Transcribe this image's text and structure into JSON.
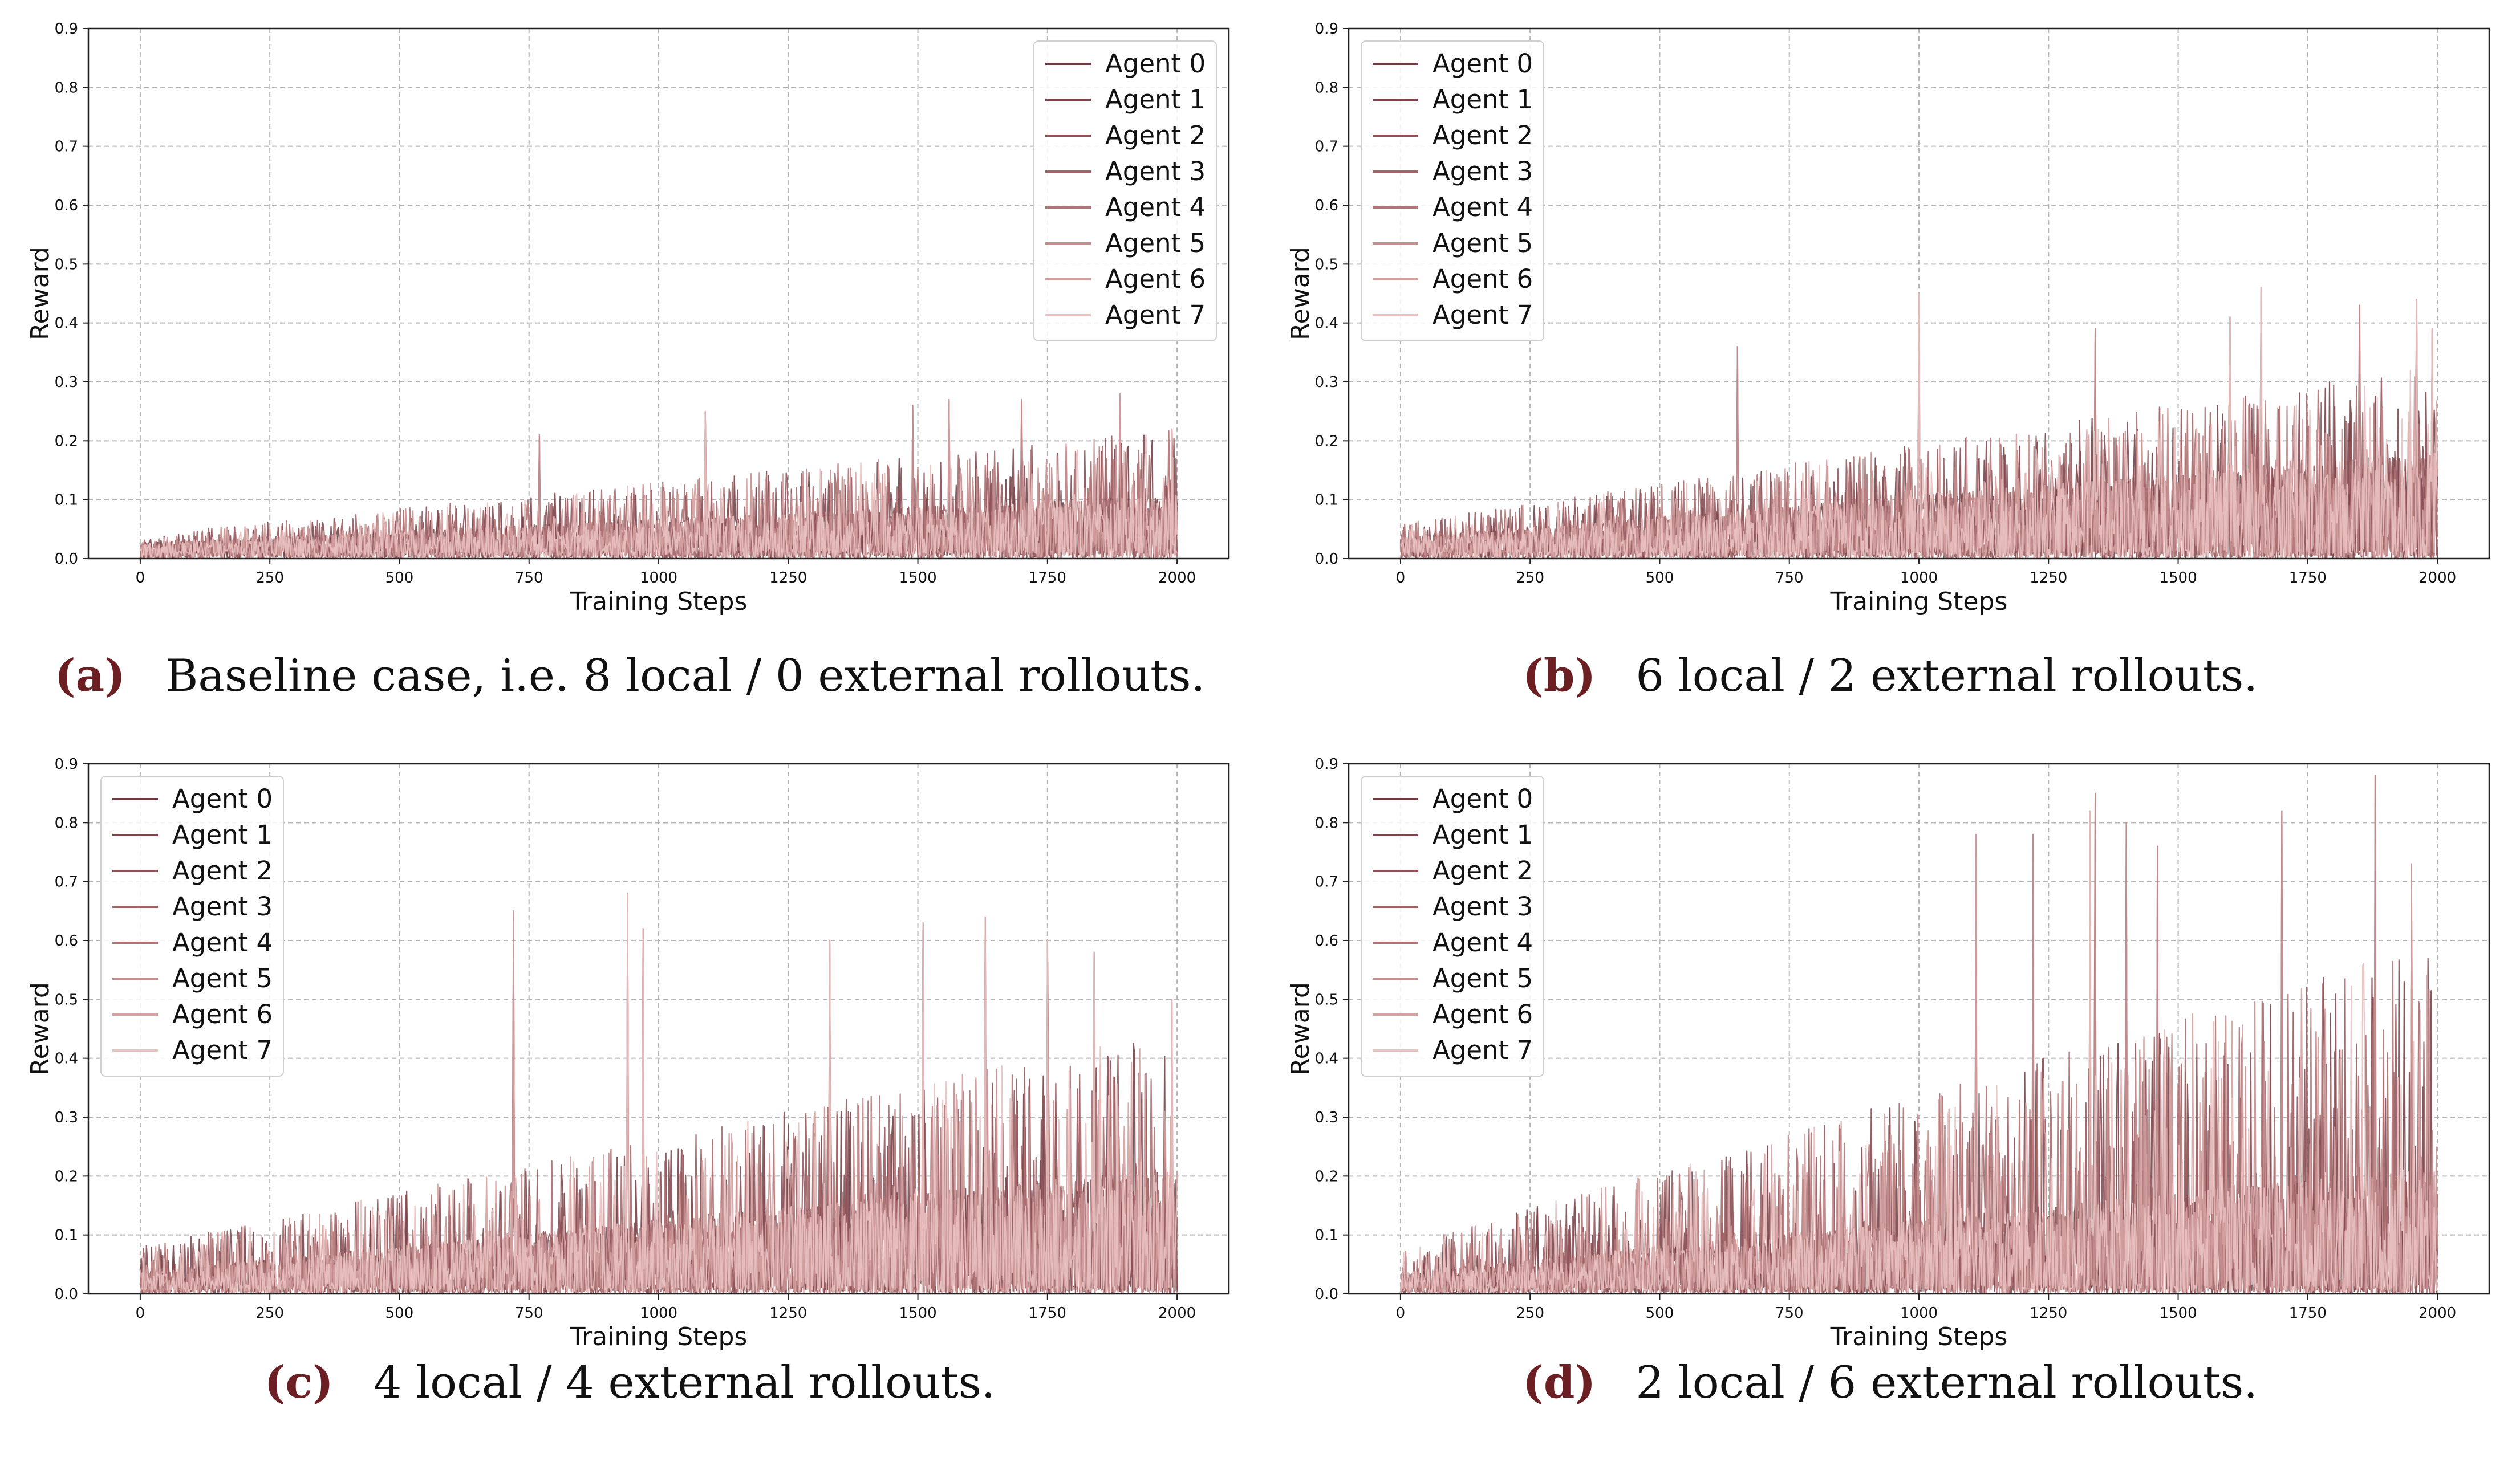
{
  "agent_colors": [
    "#6f3a40",
    "#7d434a",
    "#8f5157",
    "#a16466",
    "#b07476",
    "#c48f90",
    "#d4a1a1",
    "#e8c1c0"
  ],
  "chart_data": [
    {
      "type": "line",
      "caption_tag": "(a)",
      "caption_text": "Baseline case, i.e. 8 local / 0 external rollouts.",
      "xlabel": "Training Steps",
      "ylabel": "Reward",
      "xlim": [
        -100,
        2100
      ],
      "ylim": [
        0,
        0.9
      ],
      "xticks": [
        "0",
        "250",
        "500",
        "750",
        "1000",
        "1250",
        "1500",
        "1750",
        "2000"
      ],
      "yticks": [
        "0.0",
        "0.1",
        "0.2",
        "0.3",
        "0.4",
        "0.5",
        "0.6",
        "0.7",
        "0.8",
        "0.9"
      ],
      "grid": true,
      "legend_position": "top-right",
      "series_names": [
        "Agent 0",
        "Agent 1",
        "Agent 2",
        "Agent 3",
        "Agent 4",
        "Agent 5",
        "Agent 6",
        "Agent 7"
      ],
      "x_end": 2000,
      "base_start": 0.015,
      "base_end": 0.06,
      "peak_start": 0.04,
      "peak_end": 0.22,
      "spikes": [
        [
          770,
          0.21
        ],
        [
          1090,
          0.25
        ],
        [
          1490,
          0.26
        ],
        [
          1560,
          0.27
        ],
        [
          1700,
          0.27
        ],
        [
          1890,
          0.28
        ],
        [
          1990,
          0.22
        ]
      ]
    },
    {
      "type": "line",
      "caption_tag": "(b)",
      "caption_text": "6 local / 2 external rollouts.",
      "xlabel": "Training Steps",
      "ylabel": "Reward",
      "xlim": [
        -100,
        2100
      ],
      "ylim": [
        0,
        0.9
      ],
      "xticks": [
        "0",
        "250",
        "500",
        "750",
        "1000",
        "1250",
        "1500",
        "1750",
        "2000"
      ],
      "yticks": [
        "0.0",
        "0.1",
        "0.2",
        "0.3",
        "0.4",
        "0.5",
        "0.6",
        "0.7",
        "0.8",
        "0.9"
      ],
      "grid": true,
      "legend_position": "top-left",
      "series_names": [
        "Agent 0",
        "Agent 1",
        "Agent 2",
        "Agent 3",
        "Agent 4",
        "Agent 5",
        "Agent 6",
        "Agent 7"
      ],
      "x_end": 2000,
      "base_start": 0.02,
      "base_end": 0.1,
      "peak_start": 0.06,
      "peak_end": 0.33,
      "spikes": [
        [
          650,
          0.36
        ],
        [
          1000,
          0.45
        ],
        [
          1340,
          0.39
        ],
        [
          1600,
          0.41
        ],
        [
          1660,
          0.46
        ],
        [
          1850,
          0.43
        ],
        [
          1960,
          0.44
        ],
        [
          1990,
          0.39
        ]
      ]
    },
    {
      "type": "line",
      "caption_tag": "(c)",
      "caption_text": "4 local / 4 external rollouts.",
      "xlabel": "Training Steps",
      "ylabel": "Reward",
      "xlim": [
        -100,
        2100
      ],
      "ylim": [
        0,
        0.9
      ],
      "xticks": [
        "0",
        "250",
        "500",
        "750",
        "1000",
        "1250",
        "1500",
        "1750",
        "2000"
      ],
      "yticks": [
        "0.0",
        "0.1",
        "0.2",
        "0.3",
        "0.4",
        "0.5",
        "0.6",
        "0.7",
        "0.8",
        "0.9"
      ],
      "grid": true,
      "legend_position": "top-left",
      "series_names": [
        "Agent 0",
        "Agent 1",
        "Agent 2",
        "Agent 3",
        "Agent 4",
        "Agent 5",
        "Agent 6",
        "Agent 7"
      ],
      "x_end": 2000,
      "base_start": 0.02,
      "base_end": 0.12,
      "peak_start": 0.08,
      "peak_end": 0.45,
      "spikes": [
        [
          720,
          0.65
        ],
        [
          940,
          0.68
        ],
        [
          970,
          0.62
        ],
        [
          1330,
          0.6
        ],
        [
          1510,
          0.63
        ],
        [
          1630,
          0.64
        ],
        [
          1750,
          0.6
        ],
        [
          1840,
          0.58
        ],
        [
          1990,
          0.5
        ]
      ]
    },
    {
      "type": "line",
      "caption_tag": "(d)",
      "caption_text": "2 local / 6 external rollouts.",
      "xlabel": "Training Steps",
      "ylabel": "Reward",
      "xlim": [
        -100,
        2100
      ],
      "ylim": [
        0,
        0.9
      ],
      "xticks": [
        "0",
        "250",
        "500",
        "750",
        "1000",
        "1250",
        "1500",
        "1750",
        "2000"
      ],
      "yticks": [
        "0.0",
        "0.1",
        "0.2",
        "0.3",
        "0.4",
        "0.5",
        "0.6",
        "0.7",
        "0.8",
        "0.9"
      ],
      "grid": true,
      "legend_position": "top-left",
      "series_names": [
        "Agent 0",
        "Agent 1",
        "Agent 2",
        "Agent 3",
        "Agent 4",
        "Agent 5",
        "Agent 6",
        "Agent 7"
      ],
      "x_end": 2000,
      "base_start": 0.02,
      "base_end": 0.12,
      "peak_start": 0.08,
      "peak_end": 0.6,
      "spikes": [
        [
          1110,
          0.78
        ],
        [
          1220,
          0.78
        ],
        [
          1330,
          0.82
        ],
        [
          1340,
          0.85
        ],
        [
          1400,
          0.8
        ],
        [
          1460,
          0.76
        ],
        [
          1700,
          0.82
        ],
        [
          1880,
          0.88
        ],
        [
          1950,
          0.73
        ]
      ]
    }
  ]
}
